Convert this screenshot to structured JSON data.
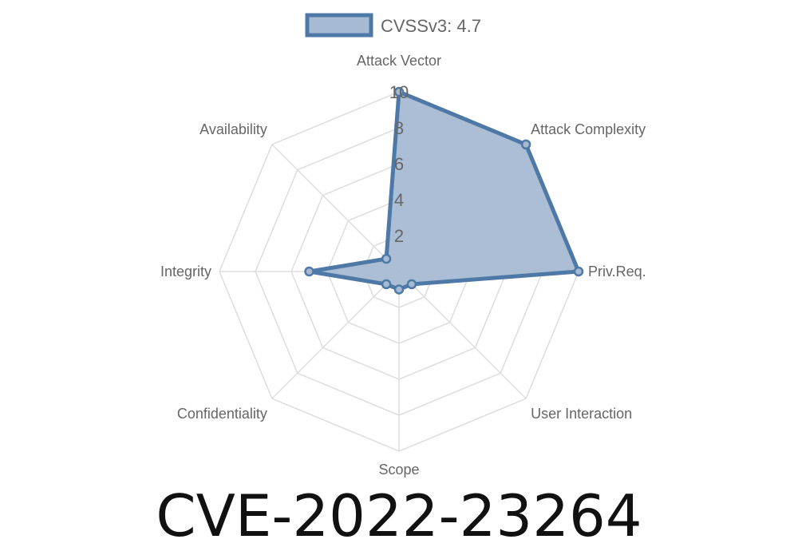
{
  "chart_data": {
    "type": "radar",
    "title": "CVE-2022-23264",
    "axes": [
      "Attack Vector",
      "Attack Complexity",
      "Priv.Req.",
      "User Interaction",
      "Scope",
      "Confidentiality",
      "Integrity",
      "Availability"
    ],
    "series": [
      {
        "name": "CVSSv3: 4.7",
        "values": [
          10,
          10,
          10,
          1,
          1,
          1,
          5,
          1
        ]
      }
    ],
    "rlim": [
      0,
      10
    ],
    "ticks": [
      "2",
      "4",
      "6",
      "8",
      "10"
    ],
    "legend": "top",
    "colors": {
      "line": "#4e79a7",
      "fill": "#a6bad3",
      "grid": "#dddddd"
    }
  }
}
